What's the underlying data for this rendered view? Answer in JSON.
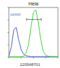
{
  "chart_data": {
    "type": "line",
    "title": "Hela",
    "caption": "120548701",
    "x": [
      0,
      5,
      10,
      15,
      20,
      25,
      30,
      35,
      40,
      45,
      50,
      55,
      60,
      65,
      70,
      75,
      80,
      85,
      90,
      95,
      100
    ],
    "series": [
      {
        "name": "control",
        "color": "#3f5fc8",
        "values": [
          2,
          20,
          55,
          60,
          35,
          15,
          6,
          3,
          2,
          1,
          1,
          1,
          1,
          1,
          1,
          1,
          1,
          1,
          1,
          1,
          1
        ]
      },
      {
        "color": "#3ccf3c",
        "values": [
          1,
          1,
          1,
          1,
          1,
          1,
          2,
          8,
          25,
          60,
          90,
          95,
          70,
          35,
          12,
          4,
          2,
          1,
          1,
          1,
          1
        ]
      }
    ],
    "gate": {
      "range": [
        36,
        66
      ],
      "y": 76
    },
    "xlim": [
      0,
      100
    ],
    "ylim": [
      0,
      100
    ],
    "xticks": [
      0,
      25,
      50,
      75,
      100
    ],
    "yticks": [
      0,
      25,
      50,
      75,
      100
    ],
    "tick_labels": false
  }
}
